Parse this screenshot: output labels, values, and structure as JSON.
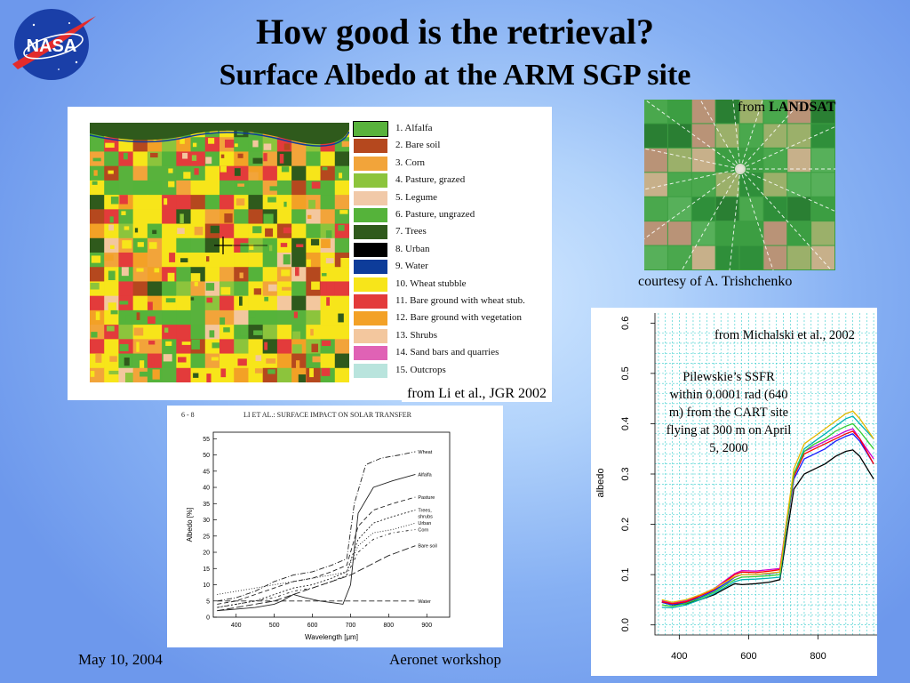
{
  "slide": {
    "title": "How good is the retrieval?",
    "subtitle": "Surface Albedo at the ARM SGP site",
    "logo_text": "NASA",
    "footer_date": "May 10, 2004",
    "footer_event": "Aeronet workshop"
  },
  "landcover_map": {
    "caption": "from Li et al., JGR 2002",
    "legend": [
      {
        "label": "1. Alfalfa",
        "color": "#58b23c"
      },
      {
        "label": "2. Bare soil",
        "color": "#b5481e"
      },
      {
        "label": "3. Corn",
        "color": "#f2a43a"
      },
      {
        "label": "4. Pasture, grazed",
        "color": "#8cc43c"
      },
      {
        "label": "5. Legume",
        "color": "#f1c9a8"
      },
      {
        "label": "6. Pasture, ungrazed",
        "color": "#55b33a"
      },
      {
        "label": "7. Trees",
        "color": "#2f5a1c"
      },
      {
        "label": "8. Urban",
        "color": "#000000"
      },
      {
        "label": "9. Water",
        "color": "#0d3c9a"
      },
      {
        "label": "10. Wheat stubble",
        "color": "#f7e51a"
      },
      {
        "label": "11. Bare ground with wheat stub.",
        "color": "#e33b3b"
      },
      {
        "label": "12. Bare ground with vegetation",
        "color": "#f3a126"
      },
      {
        "label": "13. Shrubs",
        "color": "#f3c79e"
      },
      {
        "label": "14. Sand bars and quarries",
        "color": "#e062b5"
      },
      {
        "label": "15. Outcrops",
        "color": "#b9e4dd"
      }
    ]
  },
  "landsat": {
    "from_prefix": "from ",
    "from_bold": "LANDSAT",
    "courtesy": "courtesy of A. Trishchenko"
  },
  "paper_figure": {
    "page_label": "6 - 8",
    "header": "LI ET AL.: SURFACE IMPACT ON SOLAR TRANSFER",
    "xlabel": "Wavelength  [μm]",
    "ylabel": "Albedo [%]"
  },
  "ssfr_figure": {
    "annotation_source": "from Michalski et al., 2002",
    "annotation_desc": "Pilewskie’s SSFR within 0.0001 rad (640 m) from the CART site flying at 300 m on April 5, 2000",
    "ylabel": "albedo"
  },
  "chart_data": [
    {
      "type": "line",
      "title": "",
      "xlabel": "Wavelength [μm]",
      "ylabel": "Albedo [%]",
      "xlim": [
        340,
        960
      ],
      "ylim": [
        0,
        57
      ],
      "xticks": [
        400,
        500,
        600,
        700,
        800,
        900
      ],
      "yticks": [
        0,
        5,
        10,
        15,
        20,
        25,
        30,
        35,
        40,
        45,
        50,
        55
      ],
      "grid": false,
      "series": [
        {
          "name": "Wheat",
          "dash": "6,2,1,2",
          "x": [
            350,
            400,
            450,
            500,
            550,
            600,
            650,
            690,
            710,
            740,
            780,
            830,
            870
          ],
          "y": [
            5,
            6,
            8,
            11,
            13,
            14,
            16,
            18,
            35,
            47,
            49,
            50,
            51
          ]
        },
        {
          "name": "Alfalfa",
          "dash": "",
          "x": [
            350,
            400,
            450,
            500,
            520,
            550,
            580,
            620,
            680,
            700,
            720,
            760,
            810,
            870
          ],
          "y": [
            2,
            2.5,
            3,
            4,
            5,
            7,
            6,
            5,
            4,
            10,
            32,
            40,
            42,
            44
          ]
        },
        {
          "name": "Pasture",
          "dash": "5,3",
          "x": [
            350,
            400,
            450,
            500,
            550,
            600,
            650,
            690,
            720,
            760,
            810,
            870
          ],
          "y": [
            4,
            5,
            7,
            9,
            11,
            12,
            14,
            16,
            28,
            33,
            35,
            37
          ]
        },
        {
          "name": "Trees,\nshrubs",
          "dash": "2,2",
          "x": [
            350,
            400,
            450,
            500,
            550,
            600,
            650,
            690,
            720,
            760,
            810,
            870
          ],
          "y": [
            3,
            4,
            5,
            7,
            9,
            10,
            12,
            14,
            24,
            29,
            31,
            33
          ]
        },
        {
          "name": "Urban",
          "dash": "1,2",
          "x": [
            350,
            400,
            450,
            500,
            550,
            600,
            650,
            690,
            720,
            760,
            810,
            870
          ],
          "y": [
            7,
            8,
            9,
            10,
            11,
            12,
            13,
            14,
            22,
            26,
            27,
            29
          ]
        },
        {
          "name": "Corn",
          "dash": "3,3,1,3",
          "x": [
            350,
            400,
            450,
            500,
            550,
            600,
            650,
            690,
            720,
            760,
            810,
            870
          ],
          "y": [
            3,
            4,
            5,
            6,
            8,
            9,
            11,
            13,
            20,
            24,
            26,
            27
          ]
        },
        {
          "name": "Bare soil",
          "dash": "8,3",
          "x": [
            350,
            400,
            450,
            500,
            550,
            600,
            650,
            700,
            750,
            800,
            870
          ],
          "y": [
            2,
            3,
            4,
            5,
            7,
            9,
            11,
            13,
            16,
            19,
            22
          ]
        },
        {
          "name": "Water",
          "dash": "6,3",
          "x": [
            350,
            870
          ],
          "y": [
            5,
            5
          ]
        }
      ]
    },
    {
      "type": "line",
      "title": "",
      "xlabel": "",
      "ylabel": "albedo",
      "xlim": [
        330,
        970
      ],
      "ylim": [
        -0.02,
        0.62
      ],
      "xticks": [
        400,
        600,
        800
      ],
      "yticks": [
        0.0,
        0.1,
        0.2,
        0.3,
        0.4,
        0.5,
        0.6
      ],
      "grid": true,
      "series": [
        {
          "color": "#000000",
          "x": [
            350,
            380,
            420,
            460,
            500,
            540,
            560,
            580,
            620,
            660,
            690,
            710,
            730,
            760,
            790,
            820,
            850,
            880,
            900,
            920,
            960
          ],
          "y": [
            0.045,
            0.04,
            0.042,
            0.05,
            0.06,
            0.075,
            0.082,
            0.08,
            0.082,
            0.085,
            0.09,
            0.18,
            0.27,
            0.3,
            0.31,
            0.32,
            0.335,
            0.345,
            0.348,
            0.335,
            0.29
          ]
        },
        {
          "color": "#1a1aff",
          "x": [
            350,
            380,
            420,
            460,
            500,
            540,
            560,
            580,
            620,
            660,
            690,
            710,
            730,
            760,
            790,
            820,
            850,
            880,
            900,
            920,
            960
          ],
          "y": [
            0.045,
            0.04,
            0.045,
            0.055,
            0.068,
            0.085,
            0.095,
            0.1,
            0.1,
            0.102,
            0.105,
            0.2,
            0.29,
            0.33,
            0.34,
            0.35,
            0.365,
            0.375,
            0.38,
            0.365,
            0.32
          ]
        },
        {
          "color": "#cc00cc",
          "x": [
            350,
            380,
            420,
            460,
            500,
            540,
            560,
            580,
            620,
            660,
            690,
            710,
            730,
            760,
            790,
            820,
            850,
            880,
            900,
            920,
            960
          ],
          "y": [
            0.048,
            0.044,
            0.048,
            0.06,
            0.072,
            0.092,
            0.102,
            0.108,
            0.107,
            0.11,
            0.112,
            0.21,
            0.3,
            0.345,
            0.355,
            0.365,
            0.375,
            0.385,
            0.39,
            0.37,
            0.33
          ]
        },
        {
          "color": "#ff0000",
          "x": [
            350,
            380,
            420,
            460,
            500,
            540,
            560,
            580,
            620,
            660,
            690,
            710,
            730,
            760,
            790,
            820,
            850,
            880,
            900,
            920,
            960
          ],
          "y": [
            0.046,
            0.042,
            0.046,
            0.058,
            0.07,
            0.09,
            0.1,
            0.105,
            0.104,
            0.107,
            0.11,
            0.2,
            0.295,
            0.34,
            0.35,
            0.36,
            0.37,
            0.38,
            0.385,
            0.37,
            0.32
          ]
        },
        {
          "color": "#00b3b3",
          "x": [
            350,
            380,
            420,
            460,
            500,
            540,
            560,
            580,
            620,
            660,
            690,
            710,
            730,
            760,
            790,
            820,
            850,
            880,
            900,
            920,
            960
          ],
          "y": [
            0.035,
            0.034,
            0.04,
            0.05,
            0.062,
            0.078,
            0.086,
            0.09,
            0.091,
            0.093,
            0.095,
            0.2,
            0.3,
            0.35,
            0.365,
            0.38,
            0.395,
            0.41,
            0.415,
            0.4,
            0.37
          ]
        },
        {
          "color": "#33cc33",
          "x": [
            350,
            380,
            420,
            460,
            500,
            540,
            560,
            580,
            620,
            660,
            690,
            710,
            730,
            760,
            790,
            820,
            850,
            880,
            900,
            920,
            960
          ],
          "y": [
            0.04,
            0.037,
            0.043,
            0.053,
            0.065,
            0.082,
            0.09,
            0.095,
            0.096,
            0.098,
            0.1,
            0.205,
            0.3,
            0.345,
            0.36,
            0.37,
            0.385,
            0.395,
            0.4,
            0.385,
            0.35
          ]
        },
        {
          "color": "#e6b800",
          "x": [
            350,
            380,
            420,
            460,
            500,
            540,
            560,
            580,
            620,
            660,
            690,
            710,
            730,
            760,
            790,
            820,
            850,
            880,
            900,
            920,
            960
          ],
          "y": [
            0.05,
            0.045,
            0.05,
            0.06,
            0.072,
            0.088,
            0.096,
            0.1,
            0.1,
            0.103,
            0.105,
            0.21,
            0.31,
            0.36,
            0.375,
            0.39,
            0.405,
            0.42,
            0.425,
            0.41,
            0.37
          ]
        }
      ]
    }
  ]
}
